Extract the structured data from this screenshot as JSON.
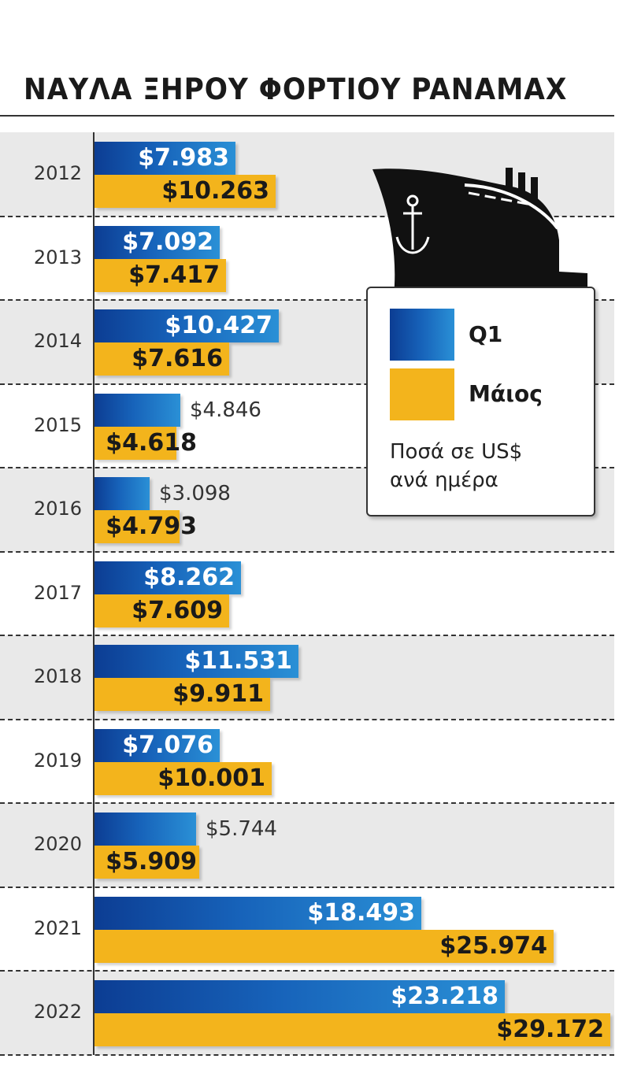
{
  "title": "ΝΑΥΛΑ ΞΗΡΟΥ ΦΟΡΤΙΟΥ PANAMAX",
  "legend": {
    "q1_label": "Q1",
    "may_label": "Μάιος",
    "note_line1": "Ποσά σε US$",
    "note_line2": "ανά ημέρα"
  },
  "colors": {
    "q1": "#1763ba",
    "may": "#f3b41c",
    "shaded_row": "#e9e9e9"
  },
  "chart_data": {
    "type": "bar",
    "orientation": "horizontal",
    "title": "ΝΑΥΛΑ ΞΗΡΟΥ ΦΟΡΤΙΟΥ PANAMAX",
    "categories": [
      "2012",
      "2013",
      "2014",
      "2015",
      "2016",
      "2017",
      "2018",
      "2019",
      "2020",
      "2021",
      "2022"
    ],
    "series": [
      {
        "name": "Q1",
        "values": [
          7983,
          7092,
          10427,
          4846,
          3098,
          8262,
          11531,
          7076,
          5744,
          18493,
          23218
        ],
        "labels": [
          "$7.983",
          "$7.092",
          "$10.427",
          "$4.846",
          "$3.098",
          "$8.262",
          "$11.531",
          "$7.076",
          "$5.744",
          "$18.493",
          "$23.218"
        ]
      },
      {
        "name": "Μάιος",
        "values": [
          10263,
          7417,
          7616,
          4618,
          4793,
          7609,
          9911,
          10001,
          5909,
          25974,
          29172
        ],
        "labels": [
          "$10.263",
          "$7.417",
          "$7.616",
          "$4.618",
          "$4.793",
          "$7.609",
          "$9.911",
          "$10.001",
          "$5.909",
          "$25.974",
          "$29.172"
        ]
      }
    ],
    "xlabel": "",
    "ylabel": "",
    "xlim": [
      0,
      30000
    ],
    "grid": false,
    "legend_position": "right"
  }
}
